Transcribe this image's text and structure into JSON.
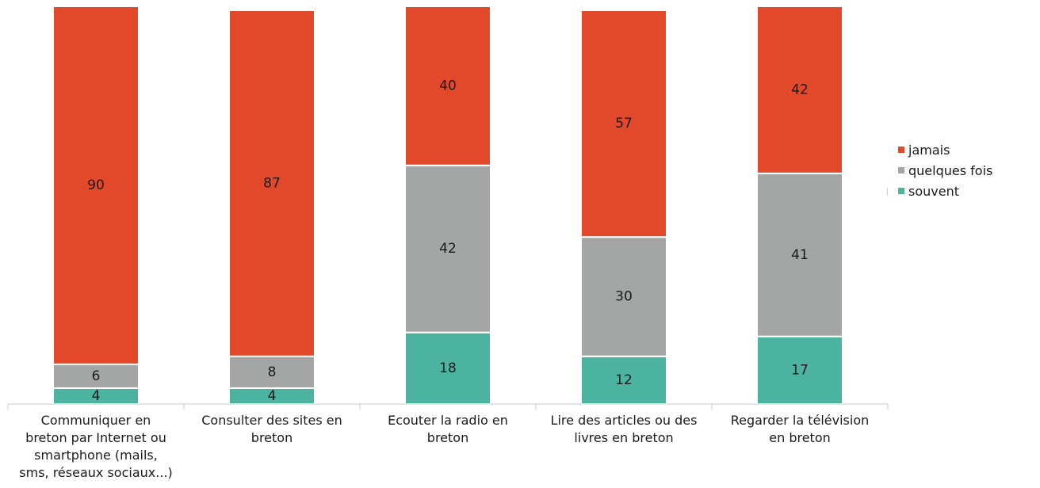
{
  "chart_data": {
    "type": "bar",
    "stacked": true,
    "ylim": [
      0,
      100
    ],
    "categories": [
      [
        "Communiquer en",
        "breton par Internet ou",
        "smartphone (mails,",
        "sms, réseaux sociaux...)"
      ],
      [
        "Consulter des sites en",
        "breton"
      ],
      [
        "Ecouter la radio en",
        "breton"
      ],
      [
        "Lire des articles ou des",
        "livres en breton"
      ],
      [
        "Regarder la télévision",
        "en breton"
      ]
    ],
    "series": [
      {
        "name": "souvent",
        "color": "#4bb3a0",
        "values": [
          4,
          4,
          18,
          12,
          17
        ]
      },
      {
        "name": "quelques fois",
        "color": "#a3a6a5",
        "values": [
          6,
          8,
          42,
          30,
          41
        ]
      },
      {
        "name": "jamais",
        "color": "#e2492a",
        "values": [
          90,
          87,
          40,
          57,
          42
        ]
      }
    ],
    "legend": {
      "position": "right",
      "order": [
        "jamais",
        "quelques fois",
        "souvent"
      ]
    },
    "grid": false
  }
}
